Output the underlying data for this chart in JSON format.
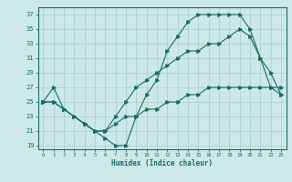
{
  "xlabel": "Humidex (Indice chaleur)",
  "xlim": [
    -0.5,
    23.5
  ],
  "ylim": [
    18.5,
    38.0
  ],
  "xticks": [
    0,
    1,
    2,
    3,
    4,
    5,
    6,
    7,
    8,
    9,
    10,
    11,
    12,
    13,
    14,
    15,
    16,
    17,
    18,
    19,
    20,
    21,
    22,
    23
  ],
  "yticks": [
    19,
    21,
    23,
    25,
    27,
    29,
    31,
    33,
    35,
    37
  ],
  "bg_color": "#cce8e8",
  "line_color": "#1a6b6b",
  "grid_color": "#aacccc",
  "series1_x": [
    0,
    1,
    2,
    3,
    4,
    5,
    6,
    7,
    8,
    9,
    10,
    11,
    12,
    13,
    14,
    15,
    16,
    17,
    18,
    19,
    20,
    21,
    22,
    23
  ],
  "series1_y": [
    25,
    27,
    24,
    23,
    22,
    21,
    20,
    19,
    19,
    23,
    26,
    28,
    32,
    34,
    36,
    37,
    37,
    37,
    37,
    37,
    35,
    31,
    27,
    26
  ],
  "series2_x": [
    0,
    1,
    2,
    3,
    4,
    5,
    6,
    7,
    8,
    9,
    10,
    11,
    12,
    13,
    14,
    15,
    16,
    17,
    18,
    19,
    20,
    21,
    22,
    23
  ],
  "series2_y": [
    25,
    25,
    24,
    23,
    22,
    21,
    21,
    23,
    25,
    27,
    28,
    29,
    30,
    31,
    32,
    32,
    33,
    33,
    34,
    35,
    34,
    31,
    29,
    26
  ],
  "series3_x": [
    0,
    1,
    2,
    3,
    4,
    5,
    6,
    7,
    8,
    9,
    10,
    11,
    12,
    13,
    14,
    15,
    16,
    17,
    18,
    19,
    20,
    21,
    22,
    23
  ],
  "series3_y": [
    25,
    25,
    24,
    23,
    22,
    21,
    21,
    22,
    23,
    23,
    24,
    24,
    25,
    25,
    26,
    26,
    27,
    27,
    27,
    27,
    27,
    27,
    27,
    27
  ]
}
